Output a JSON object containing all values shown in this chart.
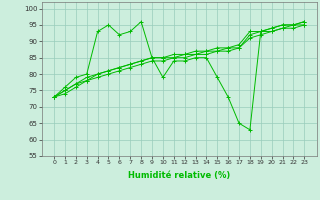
{
  "x": [
    0,
    1,
    2,
    3,
    4,
    5,
    6,
    7,
    8,
    9,
    10,
    11,
    12,
    13,
    14,
    15,
    16,
    17,
    18,
    19,
    20,
    21,
    22,
    23
  ],
  "line1": [
    73,
    76,
    79,
    80,
    93,
    95,
    92,
    93,
    96,
    85,
    79,
    84,
    84,
    85,
    85,
    79,
    73,
    65,
    63,
    93,
    94,
    95,
    95,
    96
  ],
  "line2": [
    73,
    75,
    77,
    79,
    80,
    81,
    82,
    83,
    84,
    85,
    85,
    86,
    86,
    87,
    87,
    88,
    88,
    89,
    93,
    93,
    94,
    95,
    95,
    96
  ],
  "line3": [
    73,
    75,
    77,
    78,
    80,
    81,
    82,
    83,
    84,
    85,
    85,
    85,
    86,
    86,
    87,
    87,
    88,
    88,
    92,
    93,
    93,
    94,
    95,
    95
  ],
  "line4": [
    73,
    74,
    76,
    78,
    79,
    80,
    81,
    82,
    83,
    84,
    84,
    85,
    85,
    86,
    86,
    87,
    87,
    88,
    91,
    92,
    93,
    94,
    94,
    95
  ],
  "line_color": "#00bb00",
  "bg_color": "#cceedd",
  "grid_color": "#99ccbb",
  "xlabel": "Humidité relative (%)",
  "ylim": [
    55,
    102
  ],
  "yticks": [
    55,
    60,
    65,
    70,
    75,
    80,
    85,
    90,
    95,
    100
  ],
  "xticks": [
    0,
    1,
    2,
    3,
    4,
    5,
    6,
    7,
    8,
    9,
    10,
    11,
    12,
    13,
    14,
    15,
    16,
    17,
    18,
    19,
    20,
    21,
    22,
    23
  ]
}
